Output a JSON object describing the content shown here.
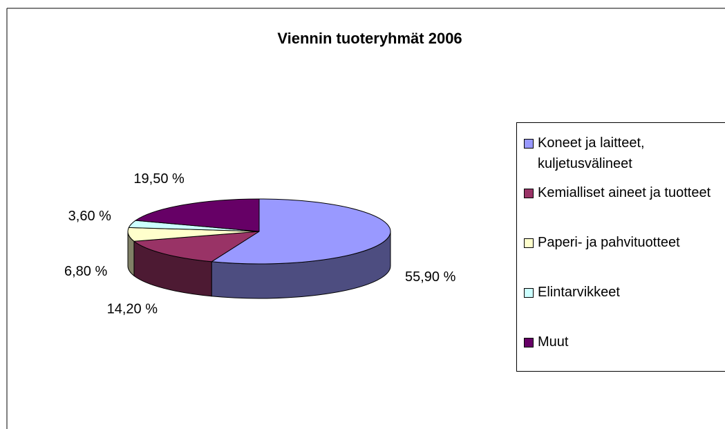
{
  "chart_data": {
    "type": "pie",
    "title": "Viennin tuoteryhmät 2006",
    "categories": [
      "Koneet ja laitteet, kuljetusvälineet",
      "Kemialliset aineet ja tuotteet",
      "Paperi- ja pahvituotteet",
      "Elintarvikkeet",
      "Muut"
    ],
    "values": [
      55.9,
      14.2,
      6.8,
      3.6,
      19.5
    ],
    "value_labels": [
      "55,90 %",
      "14,20 %",
      "6,80 %",
      "3,60 %",
      "19,50 %"
    ],
    "colors": [
      "#9999ff",
      "#993366",
      "#ffffcc",
      "#ccffff",
      "#660066"
    ],
    "legend": "right"
  }
}
